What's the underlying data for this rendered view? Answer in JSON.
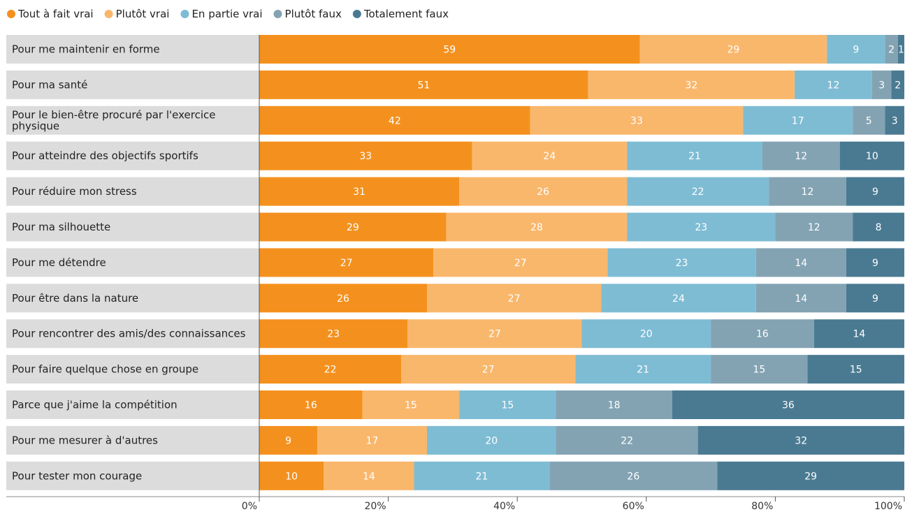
{
  "chart_data": {
    "type": "bar",
    "orientation": "horizontal",
    "stacked": true,
    "xlim": [
      0,
      100
    ],
    "x_ticks": [
      "0%",
      "20%",
      "40%",
      "60%",
      "80%",
      "100%"
    ],
    "legend_position": "top-left",
    "categories": [
      "Pour me maintenir en forme",
      "Pour ma santé",
      "Pour le bien-être procuré par l'exercice physique",
      "Pour atteindre des objectifs sportifs",
      "Pour réduire mon stress",
      "Pour ma silhouette",
      "Pour me détendre",
      "Pour être dans la nature",
      "Pour rencontrer des amis/des connaissances",
      "Pour faire quelque chose en groupe",
      "Parce que j'aime la compétition",
      "Pour me mesurer à d'autres",
      "Pour tester mon courage"
    ],
    "series": [
      {
        "name": "Tout à fait vrai",
        "color": "#F4911E",
        "values": [
          59,
          51,
          42,
          33,
          31,
          29,
          27,
          26,
          23,
          22,
          16,
          9,
          10
        ]
      },
      {
        "name": "Plutôt vrai",
        "color": "#F9B76C",
        "values": [
          29,
          32,
          33,
          24,
          26,
          28,
          27,
          27,
          27,
          27,
          15,
          17,
          14
        ]
      },
      {
        "name": "En partie vrai",
        "color": "#7EBCD4",
        "values": [
          9,
          12,
          17,
          21,
          22,
          23,
          23,
          24,
          20,
          21,
          15,
          20,
          21
        ]
      },
      {
        "name": "Plutôt faux",
        "color": "#83A3B3",
        "values": [
          2,
          3,
          5,
          12,
          12,
          12,
          14,
          14,
          16,
          15,
          18,
          22,
          26
        ]
      },
      {
        "name": "Totalement faux",
        "color": "#4A7A92",
        "values": [
          1,
          2,
          3,
          10,
          9,
          8,
          9,
          9,
          14,
          15,
          36,
          32,
          29
        ]
      }
    ]
  }
}
